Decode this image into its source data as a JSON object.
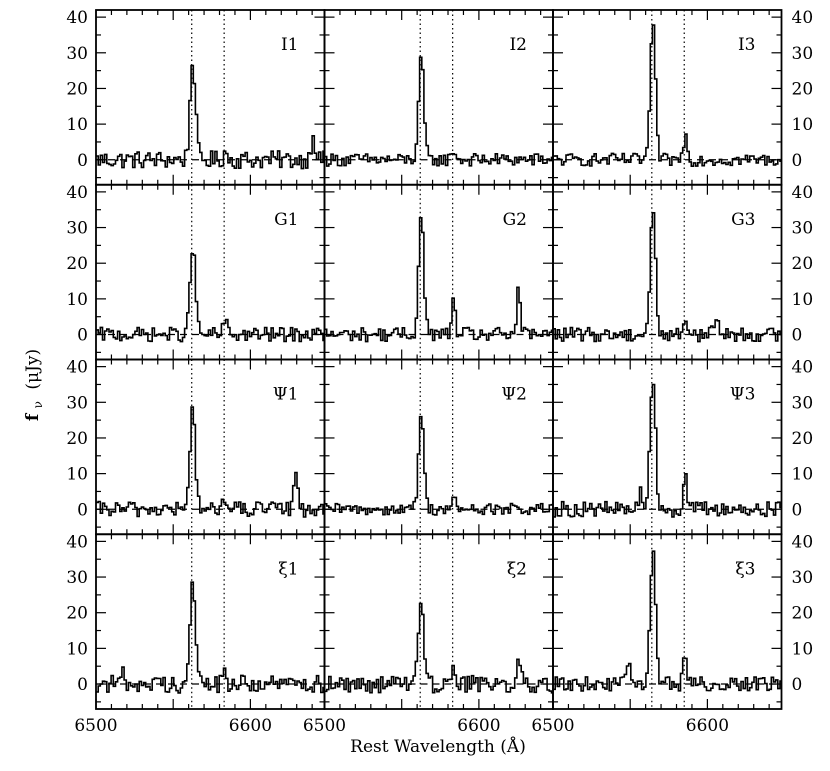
{
  "chart_data": {
    "type": "line",
    "layout": "4 rows x 3 columns of spectra panels sharing axes",
    "xlabel": "Rest Wavelength (Å)",
    "ylabel": "f",
    "ylabel_subscript": "ν",
    "ylabel_unit": "(μJy)",
    "xlim": [
      6500,
      6648
    ],
    "ylim": [
      -7,
      42
    ],
    "x_ticks": [
      6500,
      6600
    ],
    "y_ticks": [
      0,
      10,
      20,
      30,
      40
    ],
    "x_tick_labels": [
      {
        "text": "6500",
        "col": 0,
        "value": 6500
      },
      {
        "text": "6600",
        "col": 0,
        "value": 6600
      },
      {
        "text": "6500",
        "col": 1,
        "value": 6500
      },
      {
        "text": "6600",
        "col": 1,
        "value": 6600
      },
      {
        "text": "6500",
        "col": 2,
        "value": 6500
      },
      {
        "text": "6600",
        "col": 2,
        "value": 6600
      }
    ],
    "reference_lines": {
      "zero_level": 0,
      "style_zero": "dashed",
      "vertical_dotted": "at the emission line centre and a secondary line ~20 Å redward"
    },
    "panels": [
      {
        "label": "I1",
        "row": 0,
        "col": 0,
        "peak_x": 6562,
        "peak_y": 28,
        "dotted_x": [
          6562,
          6583
        ],
        "features": [
          {
            "x": 6583,
            "y": 2
          },
          {
            "x": 6640,
            "y": 8
          }
        ],
        "noise": 2.5
      },
      {
        "label": "I2",
        "row": 0,
        "col": 1,
        "peak_x": 6562,
        "peak_y": 28,
        "dotted_x": [
          6562,
          6583
        ],
        "features": [
          {
            "x": 6583,
            "y": 3
          }
        ],
        "noise": 1.8
      },
      {
        "label": "I3",
        "row": 0,
        "col": 2,
        "peak_x": 6564,
        "peak_y": 37,
        "dotted_x": [
          6564,
          6585
        ],
        "features": [
          {
            "x": 6585,
            "y": 7
          }
        ],
        "noise": 1.8
      },
      {
        "label": "G1",
        "row": 1,
        "col": 0,
        "peak_x": 6562,
        "peak_y": 25,
        "dotted_x": [
          6562,
          6583
        ],
        "features": [
          {
            "x": 6583,
            "y": 4
          }
        ],
        "noise": 2.0
      },
      {
        "label": "G2",
        "row": 1,
        "col": 1,
        "peak_x": 6562,
        "peak_y": 33,
        "dotted_x": [
          6562,
          6583
        ],
        "features": [
          {
            "x": 6583,
            "y": 9
          },
          {
            "x": 6625,
            "y": 12
          }
        ],
        "noise": 2.0
      },
      {
        "label": "G3",
        "row": 1,
        "col": 2,
        "peak_x": 6564,
        "peak_y": 35,
        "dotted_x": [
          6564,
          6585
        ],
        "features": [
          {
            "x": 6585,
            "y": 5
          },
          {
            "x": 6605,
            "y": 6
          }
        ],
        "noise": 2.0
      },
      {
        "label": "Ψ1",
        "row": 2,
        "col": 0,
        "peak_x": 6562,
        "peak_y": 28,
        "dotted_x": [
          6562,
          6583
        ],
        "features": [
          {
            "x": 6583,
            "y": 4
          },
          {
            "x": 6629,
            "y": 12
          }
        ],
        "noise": 2.2
      },
      {
        "label": "Ψ2",
        "row": 2,
        "col": 1,
        "peak_x": 6562,
        "peak_y": 27,
        "dotted_x": [
          6562,
          6583
        ],
        "features": [
          {
            "x": 6583,
            "y": 3
          }
        ],
        "noise": 1.6
      },
      {
        "label": "Ψ3",
        "row": 2,
        "col": 2,
        "peak_x": 6564,
        "peak_y": 38,
        "dotted_x": [
          6564,
          6585
        ],
        "features": [
          {
            "x": 6585,
            "y": 9
          },
          {
            "x": 6556,
            "y": 6
          }
        ],
        "noise": 2.2
      },
      {
        "label": "ξ1",
        "row": 3,
        "col": 0,
        "peak_x": 6562,
        "peak_y": 29,
        "dotted_x": [
          6562,
          6583
        ],
        "features": [
          {
            "x": 6583,
            "y": 3
          },
          {
            "x": 6517,
            "y": 3
          }
        ],
        "noise": 2.5
      },
      {
        "label": "ξ2",
        "row": 3,
        "col": 1,
        "peak_x": 6562,
        "peak_y": 25,
        "dotted_x": [
          6562,
          6583
        ],
        "features": [
          {
            "x": 6583,
            "y": 6
          },
          {
            "x": 6625,
            "y": 8
          }
        ],
        "noise": 2.5
      },
      {
        "label": "ξ3",
        "row": 3,
        "col": 2,
        "peak_x": 6564,
        "peak_y": 38,
        "dotted_x": [
          6564,
          6585
        ],
        "features": [
          {
            "x": 6585,
            "y": 8
          },
          {
            "x": 6548,
            "y": 6
          }
        ],
        "noise": 2.0
      }
    ]
  }
}
